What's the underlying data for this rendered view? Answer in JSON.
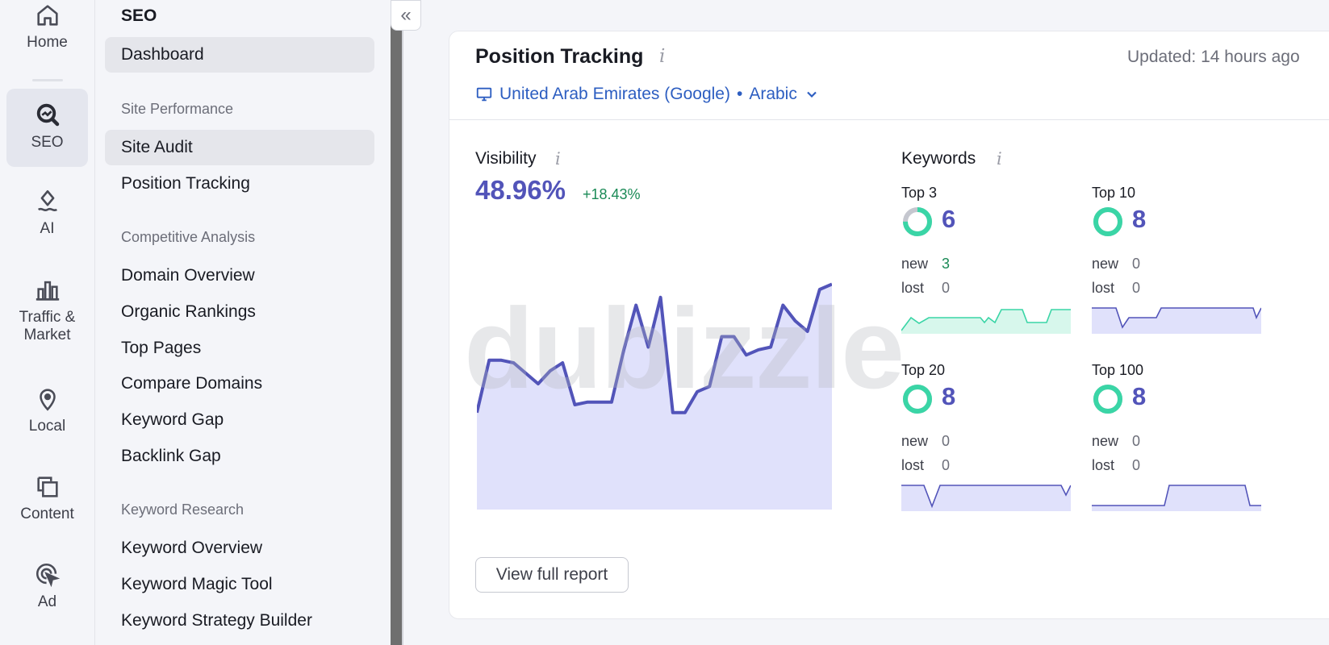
{
  "rail": {
    "items": [
      {
        "label": "Home",
        "icon": "home-icon"
      },
      {
        "label": "SEO",
        "icon": "seo-icon"
      },
      {
        "label": "AI",
        "icon": "ai-icon"
      },
      {
        "label": "Traffic &",
        "label2": "Market",
        "icon": "bar-chart-icon"
      },
      {
        "label": "Local",
        "icon": "location-pin-icon"
      },
      {
        "label": "Content",
        "icon": "content-icon"
      },
      {
        "label": "Ad",
        "icon": "ad-target-icon"
      }
    ]
  },
  "menu": {
    "title": "SEO",
    "dashboard": "Dashboard",
    "sections": [
      {
        "title": "Site Performance",
        "items": [
          "Site Audit",
          "Position Tracking"
        ]
      },
      {
        "title": "Competitive Analysis",
        "items": [
          "Domain Overview",
          "Organic Rankings",
          "Top Pages",
          "Compare Domains",
          "Keyword Gap",
          "Backlink Gap"
        ]
      },
      {
        "title": "Keyword Research",
        "items": [
          "Keyword Overview",
          "Keyword Magic Tool",
          "Keyword Strategy Builder"
        ]
      }
    ],
    "collapse_icon": "double-chevron-left-icon"
  },
  "card": {
    "title": "Position Tracking",
    "info": "i",
    "updated": "Updated: 14 hours ago",
    "location": "United Arab Emirates (Google)",
    "bullet": "•",
    "language": "Arabic",
    "location_icon": "desktop-icon",
    "dropdown_icon": "chevron-down-icon",
    "visibility": {
      "label": "Visibility",
      "value": "48.96%",
      "delta": "+18.43%"
    },
    "watermark": "dubizzle",
    "keywords": {
      "label": "Keywords",
      "new_label": "new",
      "lost_label": "lost",
      "groups": [
        {
          "title": "Top 3",
          "count": "6",
          "new": "3",
          "lost": "0",
          "fill": 0.75
        },
        {
          "title": "Top 10",
          "count": "8",
          "new": "0",
          "lost": "0",
          "fill": 1.0
        },
        {
          "title": "Top 20",
          "count": "8",
          "new": "0",
          "lost": "0",
          "fill": 1.0
        },
        {
          "title": "Top 100",
          "count": "8",
          "new": "0",
          "lost": "0",
          "fill": 1.0
        }
      ]
    },
    "report_button": "View full report"
  },
  "colors": {
    "accent": "#5254b9",
    "link": "#2d5ec1",
    "positive": "#1a8a56",
    "area_fill": "#e0e1fb",
    "donut_green": "#3ad5a6",
    "donut_grey": "#c5c7cf"
  },
  "chart_data": {
    "type": "area",
    "values": [
      37,
      57,
      57,
      56,
      52,
      48,
      53,
      56,
      40,
      41,
      41,
      41,
      61,
      78,
      62,
      81,
      37,
      37,
      45,
      47,
      66,
      66,
      59,
      61,
      62,
      78,
      72,
      68,
      84,
      86
    ],
    "ylim": [
      0,
      100
    ]
  }
}
